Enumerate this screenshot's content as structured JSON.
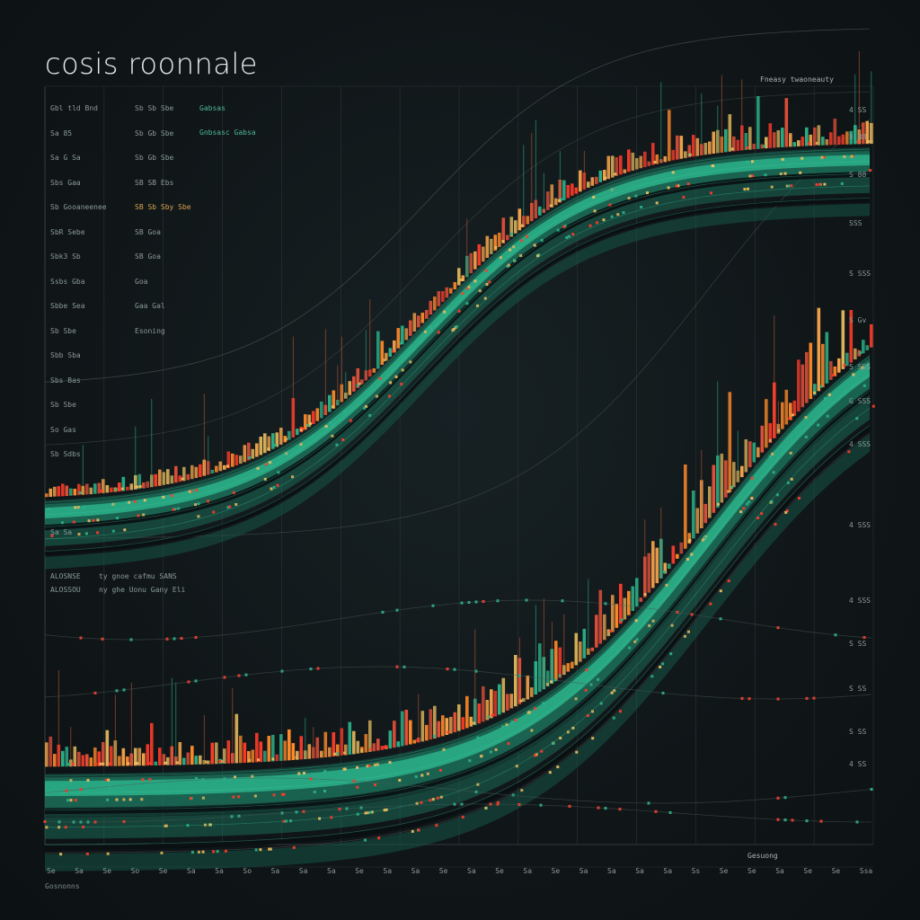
{
  "title": "cosis roonnale",
  "legend_label": "Fneasy twaoneauty",
  "x_axis_caption": "Gesuong",
  "x_axis_footer": "Gosnonns",
  "upper_panel_caption": "Sa Sa",
  "mid_labels": [
    "ALOSNSE",
    "ALOSSOU",
    "ty gnoe cafmu SANS",
    "ny ghe Uonu Gany Eli"
  ],
  "left_labels": [
    "Gbl tld Bnd",
    "Sa 85",
    "Sa G Sa",
    "Sbs Gaa",
    "Sb Gooaneenee",
    "SbR Sebe",
    "Sbk3 Sb",
    "Ssbs Gba",
    "Sbbe Sea",
    "Sb Sbe",
    "Sbb Sba",
    "Sbs Bas",
    "Sb Sbe",
    "So Gas",
    "Sb Sdbs"
  ],
  "mid_col_labels": [
    "Sb Sb Sbe",
    "Sb Gb Sbe",
    "Sb Gb Sbe",
    "SB SB Ebs",
    "SB Sb Sby Sbe",
    "SB Goa",
    "SB Goa",
    "Goa",
    "Gaa Gal",
    "Esoning"
  ],
  "right_col_labels": [
    "Gabsas",
    "Gnbsasc Gabsa"
  ],
  "y_ticks_right": [
    "4 SS",
    "8 88",
    "S 88",
    "SSS",
    "S SSS",
    "S Gv",
    "5 SSS",
    "G SSS",
    "4 SSS",
    "4 SSS",
    "4 SSS",
    "S SS",
    "S SS",
    "S SS",
    "4 SS"
  ],
  "x_ticks": [
    "Se",
    "Sa",
    "Se",
    "So",
    "Se",
    "Sa",
    "Sa",
    "So",
    "Sa",
    "Sa",
    "Sa",
    "Se",
    "Sa",
    "Sa",
    "Se",
    "Sa",
    "Se",
    "Sa",
    "Se",
    "Sa",
    "Sa",
    "Sa",
    "Sa",
    "Ss",
    "Se",
    "Se",
    "Sa",
    "Se",
    "Se",
    "Ssa"
  ],
  "colors": {
    "teal": "#2bb38a",
    "teal_dark": "#16594a",
    "red": "#ff3b2a",
    "orange": "#ff8a2a",
    "gold": "#d9b25a",
    "grid": "#2b3436"
  },
  "chart_data": {
    "type": "bar",
    "title": "cosis roonnale",
    "xlabel": "",
    "ylabel": "",
    "grid": true,
    "series": [
      {
        "name": "upper",
        "kind": "sigmoid-band"
      },
      {
        "name": "lower",
        "kind": "sigmoid-band"
      }
    ]
  }
}
